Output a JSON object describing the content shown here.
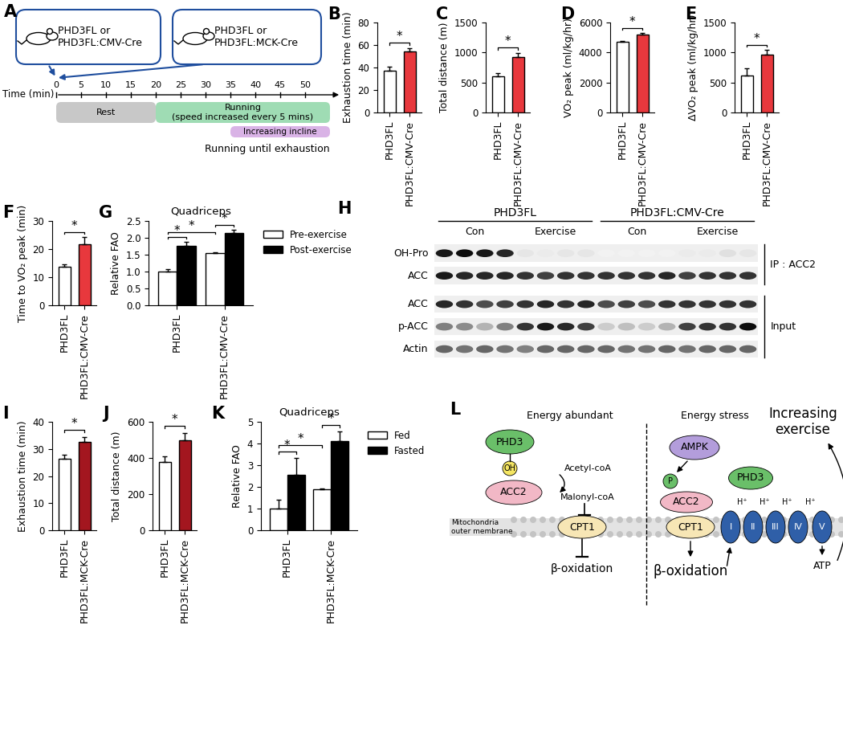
{
  "chart_data": [
    {
      "panel": "B",
      "type": "bar",
      "categories": [
        "PHD3FL",
        "PHD3FL:CMV-Cre"
      ],
      "values": [
        37.5,
        54.5
      ],
      "errors": [
        3,
        2.5
      ],
      "colors": [
        "#ffffff",
        "#e8383d"
      ],
      "y_label": "Exhaustion time (min)",
      "ylim": [
        0,
        80
      ],
      "yticks": [
        0,
        20,
        40,
        60,
        80
      ],
      "annotations": [
        {
          "text": "*",
          "between": [
            0,
            1
          ]
        }
      ]
    },
    {
      "panel": "C",
      "type": "bar",
      "categories": [
        "PHD3FL",
        "PHD3FL:CMV-Cre"
      ],
      "values": [
        600,
        930
      ],
      "errors": [
        60,
        60
      ],
      "colors": [
        "#ffffff",
        "#e8383d"
      ],
      "y_label": "Total distance (m)",
      "ylim": [
        0,
        1500
      ],
      "yticks": [
        0,
        500,
        1000,
        1500
      ],
      "annotations": [
        {
          "text": "*",
          "between": [
            0,
            1
          ]
        }
      ]
    },
    {
      "panel": "D",
      "type": "bar",
      "categories": [
        "PHD3FL",
        "PHD3FL:CMV-Cre"
      ],
      "values": [
        4700,
        5200
      ],
      "errors": [
        50,
        80
      ],
      "colors": [
        "#ffffff",
        "#e8383d"
      ],
      "y_label": "VO₂ peak (ml/kg/hr)",
      "ylim": [
        0,
        6000
      ],
      "yticks": [
        0,
        2000,
        4000,
        6000
      ],
      "annotations": [
        {
          "text": "*",
          "between": [
            0,
            1
          ]
        }
      ]
    },
    {
      "panel": "E",
      "type": "bar",
      "categories": [
        "PHD3FL",
        "PHD3FL:CMV-Cre"
      ],
      "values": [
        610,
        960
      ],
      "errors": [
        130,
        80
      ],
      "colors": [
        "#ffffff",
        "#e8383d"
      ],
      "y_label": "ΔVO₂ peak (ml/kg/hr)",
      "ylim": [
        0,
        1500
      ],
      "yticks": [
        0,
        500,
        1000,
        1500
      ],
      "annotations": [
        {
          "text": "*",
          "between": [
            0,
            1
          ]
        }
      ]
    },
    {
      "panel": "F",
      "type": "bar",
      "categories": [
        "PHD3FL",
        "PHD3FL:CMV-Cre"
      ],
      "values": [
        13.8,
        21.8
      ],
      "errors": [
        0.8,
        2.5
      ],
      "colors": [
        "#ffffff",
        "#e8383d"
      ],
      "y_label": "Time to VO₂ peak (min)",
      "ylim": [
        0,
        30
      ],
      "yticks": [
        0,
        10,
        20,
        30
      ],
      "annotations": [
        {
          "text": "*",
          "between": [
            0,
            1
          ]
        }
      ]
    },
    {
      "panel": "G",
      "type": "bar",
      "title": "Quadriceps",
      "categories": [
        "PHD3FL",
        "PHD3FL:CMV-Cre"
      ],
      "series": [
        {
          "name": "Pre-exercise",
          "color": "#ffffff",
          "values": [
            1.0,
            1.55
          ],
          "errors": [
            0.06,
            0.03
          ]
        },
        {
          "name": "Post-exercise",
          "color": "#000000",
          "values": [
            1.77,
            2.14
          ],
          "errors": [
            0.1,
            0.1
          ]
        }
      ],
      "y_label": "Relative FAO",
      "ylim": [
        0,
        2.5
      ],
      "yticks": [
        {
          "value": 0,
          "label": "0.0"
        },
        0.5,
        {
          "value": 1,
          "label": "1.0"
        },
        1.5,
        {
          "value": 2,
          "label": "2.0"
        },
        2.5
      ],
      "legend": "upper left",
      "annotations": [
        {
          "text": "*",
          "between": [
            [
              0,
              0
            ],
            [
              0,
              1
            ]
          ]
        },
        {
          "text": "*",
          "between": [
            [
              1,
              0
            ],
            [
              1,
              1
            ]
          ]
        },
        {
          "text": "*",
          "between": [
            [
              0,
              0
            ],
            [
              1,
              0
            ]
          ]
        }
      ]
    },
    {
      "panel": "I",
      "type": "bar",
      "categories": [
        "PHD3FL",
        "PHD3FL:MCK-Cre"
      ],
      "values": [
        26.3,
        32.5
      ],
      "errors": [
        1.5,
        2.0
      ],
      "colors": [
        "#ffffff",
        "#a3161f"
      ],
      "y_label": "Exhaustion time (min)",
      "ylim": [
        0,
        40
      ],
      "yticks": [
        0,
        10,
        20,
        30,
        40
      ],
      "annotations": [
        {
          "text": "*",
          "between": [
            0,
            1
          ]
        }
      ]
    },
    {
      "panel": "J",
      "type": "bar",
      "categories": [
        "PHD3FL",
        "PHD3FL:MCK-Cre"
      ],
      "values": [
        378,
        500
      ],
      "errors": [
        30,
        40
      ],
      "colors": [
        "#ffffff",
        "#a3161f"
      ],
      "y_label": "Total distance (m)",
      "ylim": [
        0,
        600
      ],
      "yticks": [
        0,
        200,
        400,
        600
      ],
      "annotations": [
        {
          "text": "*",
          "between": [
            0,
            1
          ]
        }
      ]
    },
    {
      "panel": "K",
      "type": "bar",
      "title": "Quadriceps",
      "categories": [
        "PHD3FL",
        "PHD3FL:MCK-Cre"
      ],
      "series": [
        {
          "name": "Fed",
          "color": "#ffffff",
          "values": [
            1.0,
            1.88
          ],
          "errors": [
            0.4,
            0.05
          ]
        },
        {
          "name": "Fasted",
          "color": "#000000",
          "values": [
            2.57,
            4.1
          ],
          "errors": [
            0.75,
            0.45
          ]
        }
      ],
      "y_label": "Relative FAO",
      "ylim": [
        0,
        5
      ],
      "yticks": [
        0,
        1,
        2,
        3,
        4,
        5
      ],
      "legend": "upper left",
      "annotations": [
        {
          "text": "*",
          "between": [
            [
              0,
              0
            ],
            [
              0,
              1
            ]
          ]
        },
        {
          "text": "*",
          "between": [
            [
              1,
              0
            ],
            [
              1,
              1
            ]
          ]
        },
        {
          "text": "*",
          "between": [
            [
              0,
              0
            ],
            [
              1,
              0
            ]
          ]
        }
      ]
    }
  ],
  "diagrams": {
    "A": {
      "panel": "A",
      "mice": [
        {
          "label": [
            "PHD3FL or",
            "PHD3FL:CMV-Cre"
          ]
        },
        {
          "label": [
            "PHD3FL or",
            "PHD3FL:MCK-Cre"
          ]
        }
      ],
      "time_label": "Time (min)",
      "time_ticks": [
        0,
        5,
        10,
        15,
        20,
        25,
        30,
        35,
        40,
        45,
        50
      ],
      "phases": [
        {
          "label": [
            "Rest"
          ],
          "start": 0,
          "end": 20,
          "color": "#c8c8c8"
        },
        {
          "label": [
            "Running",
            "(speed increased every 5 mins)"
          ],
          "start": 20,
          "end": 55,
          "color": "#9fdcb4"
        },
        {
          "label": [
            "Increasing incline"
          ],
          "start": 35,
          "end": 55,
          "color": "#d9b3e6"
        }
      ],
      "footer": "Running until exhaustion"
    },
    "H": {
      "panel": "H",
      "groups": [
        "PHD3FL",
        "PHD3FL:CMV-Cre"
      ],
      "conditions": [
        "Con",
        "Exercise",
        "Con",
        "Exercise"
      ],
      "rows": [
        {
          "label": "OH-Pro",
          "bands": [
            0.9,
            0.95,
            0.9,
            0.85,
            0.1,
            0.08,
            0.1,
            0.1,
            0.05,
            0.05,
            0.05,
            0.05,
            0.08,
            0.08,
            0.12,
            0.1
          ]
        },
        {
          "label": "ACC",
          "bands": [
            0.9,
            0.85,
            0.85,
            0.85,
            0.8,
            0.75,
            0.8,
            0.8,
            0.8,
            0.8,
            0.8,
            0.85,
            0.75,
            0.8,
            0.8,
            0.8
          ]
        },
        {
          "label": "ACC",
          "bands": [
            0.85,
            0.8,
            0.7,
            0.75,
            0.8,
            0.85,
            0.8,
            0.85,
            0.7,
            0.75,
            0.7,
            0.8,
            0.8,
            0.8,
            0.8,
            0.8
          ]
        },
        {
          "label": "p-ACC",
          "bands": [
            0.5,
            0.45,
            0.3,
            0.5,
            0.8,
            0.9,
            0.85,
            0.75,
            0.2,
            0.25,
            0.2,
            0.3,
            0.75,
            0.8,
            0.8,
            0.95
          ]
        },
        {
          "label": "Actin",
          "bands": [
            0.6,
            0.55,
            0.6,
            0.55,
            0.5,
            0.6,
            0.6,
            0.6,
            0.6,
            0.55,
            0.55,
            0.6,
            0.55,
            0.6,
            0.6,
            0.6
          ]
        }
      ],
      "sections": [
        {
          "label": "IP : ACC2",
          "rows": [
            0,
            1
          ]
        },
        {
          "label": "Input",
          "rows": [
            2,
            3,
            4
          ]
        }
      ]
    },
    "L": {
      "panel": "L",
      "headers": [
        "Energy abundant",
        "Energy stress"
      ],
      "membrane": [
        "Mitochondria",
        "outer membrane"
      ],
      "left": {
        "phd3": "PHD3",
        "oh": "OH",
        "acc2": "ACC2",
        "acetyl": "Acetyl-coA",
        "malonyl": "Malonyl-coA",
        "cpt1": "CPT1",
        "beta": "β-oxidation"
      },
      "right": {
        "ampk": "AMPK",
        "p": "P",
        "phd3": "PHD3",
        "acc2": "ACC2",
        "cpt1": "CPT1",
        "beta": "β-oxidation",
        "complexes": [
          "I",
          "II",
          "III",
          "IV",
          "V"
        ],
        "proton": "H⁺",
        "atp": "ATP",
        "exercise": [
          "Increasing",
          "exercise"
        ]
      }
    }
  }
}
